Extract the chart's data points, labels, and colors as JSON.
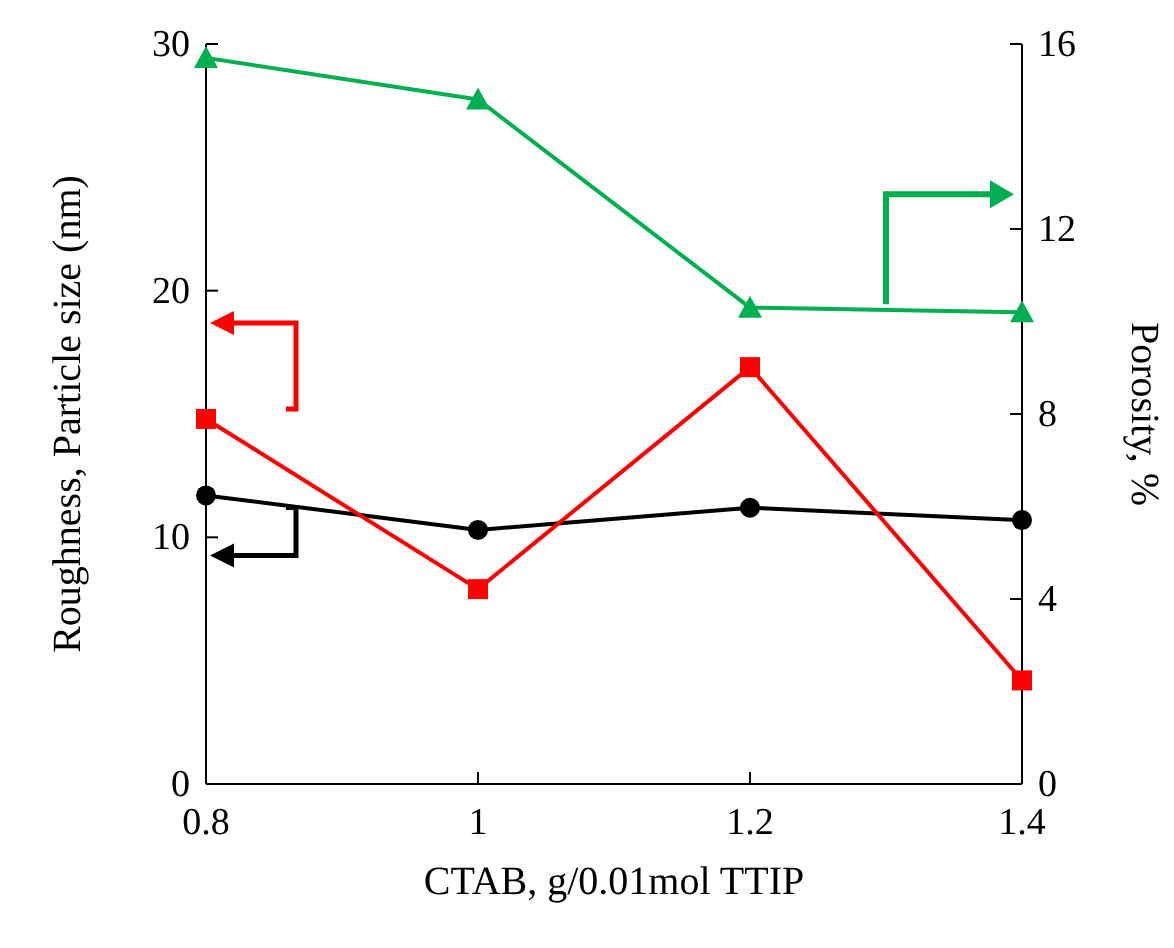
{
  "chart_data": {
    "type": "line",
    "xlabel": "CTAB, g/0.01mol TTIP",
    "ylabel": "Roughness, Particle size (nm)",
    "y2label": "Porosity, %",
    "x": [
      0.8,
      1,
      1.2,
      1.4
    ],
    "xlim": [
      0.8,
      1.4
    ],
    "xticks": [
      0.8,
      1,
      1.2,
      1.4
    ],
    "ylim": [
      0,
      30
    ],
    "yticks": [
      0,
      10,
      20,
      30
    ],
    "y2lim": [
      0,
      16
    ],
    "y2ticks": [
      0,
      4,
      8,
      12,
      16
    ],
    "grid": false,
    "series": [
      {
        "color": "#000000",
        "marker": "circle",
        "values": [
          11.7,
          10.3,
          11.2,
          10.7
        ]
      },
      {
        "color": "#ff0000",
        "marker": "square",
        "values": [
          14.8,
          7.9,
          16.9,
          4.2
        ]
      },
      {
        "color": "#00b050",
        "marker": "triangle",
        "axis": "y2",
        "values": [
          15.7,
          14.8,
          10.3,
          10.2
        ]
      }
    ]
  }
}
